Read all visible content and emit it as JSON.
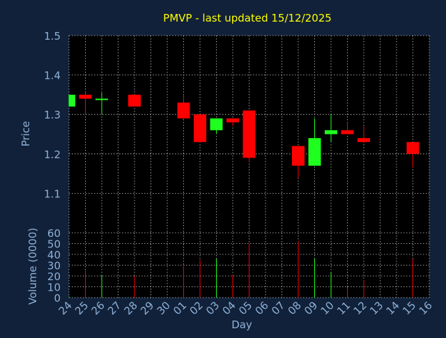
{
  "title": "PMVP - last updated 15/12/2025",
  "colors": {
    "background": "#11213a",
    "plot_background": "#000000",
    "title": "#ffff00",
    "axis_text": "#8fb1d6",
    "grid": "#c8c8c8",
    "up": "#1fff1f",
    "down": "#ff0000"
  },
  "chart_data": [
    {
      "type": "candlestick",
      "ylabel": "Price",
      "ylim": [
        1.0,
        1.5
      ],
      "yticks": [
        1.1,
        1.2,
        1.3,
        1.4,
        1.5
      ],
      "grid": true,
      "categories": [
        "24",
        "25",
        "26",
        "27",
        "28",
        "29",
        "30",
        "01",
        "02",
        "03",
        "04",
        "05",
        "06",
        "07",
        "08",
        "09",
        "10",
        "11",
        "12",
        "13",
        "14",
        "15",
        "16"
      ],
      "candles": [
        {
          "x": "24",
          "open": 1.32,
          "high": 1.35,
          "low": 1.32,
          "close": 1.35
        },
        {
          "x": "25",
          "open": 1.35,
          "high": 1.355,
          "low": 1.3,
          "close": 1.34
        },
        {
          "x": "26",
          "open": 1.34,
          "high": 1.355,
          "low": 1.3,
          "close": 1.34
        },
        {
          "x": "28",
          "open": 1.35,
          "high": 1.35,
          "low": 1.32,
          "close": 1.32
        },
        {
          "x": "01",
          "open": 1.33,
          "high": 1.35,
          "low": 1.29,
          "close": 1.29
        },
        {
          "x": "02",
          "open": 1.3,
          "high": 1.3,
          "low": 1.23,
          "close": 1.23
        },
        {
          "x": "03",
          "open": 1.26,
          "high": 1.29,
          "low": 1.25,
          "close": 1.29
        },
        {
          "x": "04",
          "open": 1.29,
          "high": 1.29,
          "low": 1.27,
          "close": 1.28
        },
        {
          "x": "05",
          "open": 1.31,
          "high": 1.31,
          "low": 1.18,
          "close": 1.19
        },
        {
          "x": "08",
          "open": 1.22,
          "high": 1.22,
          "low": 1.14,
          "close": 1.17
        },
        {
          "x": "09",
          "open": 1.17,
          "high": 1.29,
          "low": 1.17,
          "close": 1.24
        },
        {
          "x": "10",
          "open": 1.25,
          "high": 1.3,
          "low": 1.23,
          "close": 1.26
        },
        {
          "x": "11",
          "open": 1.26,
          "high": 1.28,
          "low": 1.25,
          "close": 1.25
        },
        {
          "x": "12",
          "open": 1.24,
          "high": 1.27,
          "low": 1.23,
          "close": 1.23
        },
        {
          "x": "15",
          "open": 1.23,
          "high": 1.23,
          "low": 1.165,
          "close": 1.2
        }
      ]
    },
    {
      "type": "bar",
      "xlabel": "Day",
      "ylabel": "Volume (0000)",
      "ylim": [
        0,
        60
      ],
      "yticks": [
        0,
        10,
        20,
        30,
        40,
        50,
        60
      ],
      "grid": true,
      "categories": [
        "24",
        "25",
        "26",
        "27",
        "28",
        "29",
        "30",
        "01",
        "02",
        "03",
        "04",
        "05",
        "06",
        "07",
        "08",
        "09",
        "10",
        "11",
        "12",
        "13",
        "14",
        "15",
        "16"
      ],
      "bars": [
        {
          "x": "24",
          "value": 1,
          "dir": "up"
        },
        {
          "x": "25",
          "value": 25,
          "dir": "down"
        },
        {
          "x": "26",
          "value": 21,
          "dir": "up"
        },
        {
          "x": "28",
          "value": 20,
          "dir": "down"
        },
        {
          "x": "01",
          "value": 29,
          "dir": "down"
        },
        {
          "x": "02",
          "value": 35,
          "dir": "down"
        },
        {
          "x": "03",
          "value": 36,
          "dir": "up"
        },
        {
          "x": "04",
          "value": 21,
          "dir": "down"
        },
        {
          "x": "05",
          "value": 50,
          "dir": "down"
        },
        {
          "x": "08",
          "value": 52,
          "dir": "down"
        },
        {
          "x": "09",
          "value": 36,
          "dir": "up"
        },
        {
          "x": "10",
          "value": 23,
          "dir": "up"
        },
        {
          "x": "11",
          "value": 10,
          "dir": "down"
        },
        {
          "x": "12",
          "value": 16,
          "dir": "down"
        },
        {
          "x": "15",
          "value": 36,
          "dir": "down"
        }
      ]
    }
  ]
}
